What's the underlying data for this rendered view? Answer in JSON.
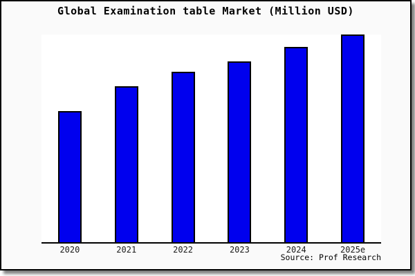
{
  "header": {
    "title": "Global Examination table Market (Million USD)"
  },
  "footer": {
    "source_text": "Source: Prof Research"
  },
  "colors": {
    "bar_fill": "#0000ee",
    "bar_outline": "#000000",
    "plot_background": "#ffffff",
    "canvas_background": "#fafafa",
    "frame_border": "#000000",
    "axis_line": "#000000"
  },
  "chart_data": {
    "type": "bar",
    "title": "Global Examination table Market (Million USD)",
    "categories": [
      "2020",
      "2021",
      "2022",
      "2023",
      "2024",
      "2025e"
    ],
    "values": [
      63,
      75,
      82,
      87,
      94,
      100
    ],
    "values_unit": "relative height, % of 2025e bar (no y-axis values shown in image)",
    "xlabel": "",
    "ylabel": "",
    "ylim": [
      0,
      100
    ],
    "grid": false,
    "legend_position": "none",
    "bar_color": "#0000ee",
    "bar_border_color": "#000000",
    "annotations": [
      "Source: Prof Research"
    ]
  }
}
